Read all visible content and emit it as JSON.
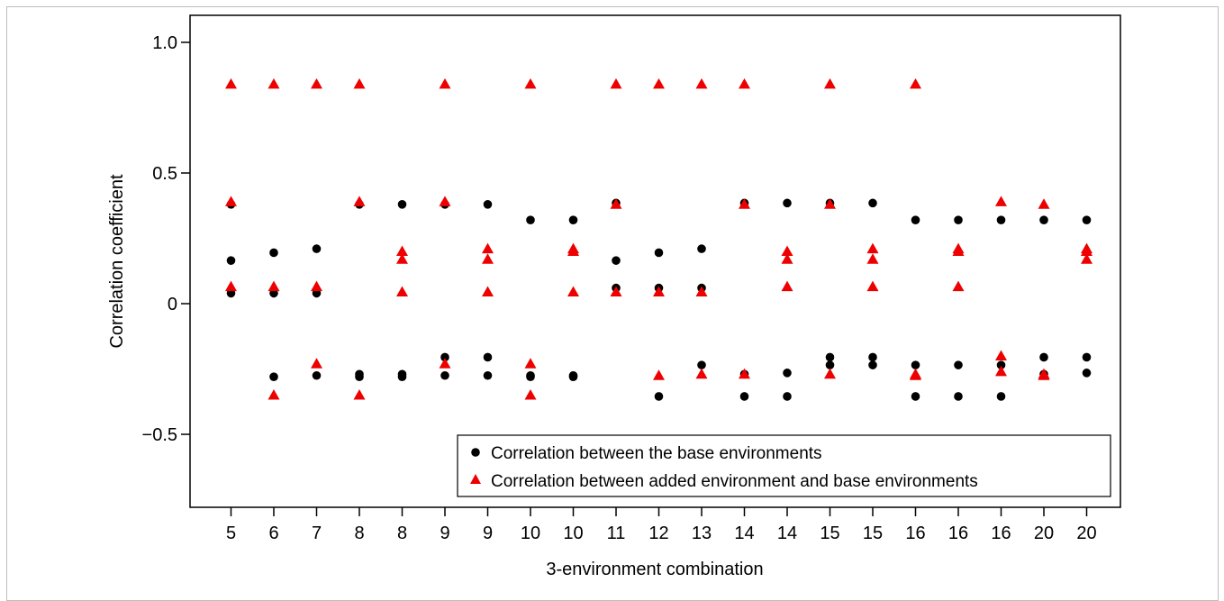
{
  "chart_data": {
    "type": "scatter",
    "xlabel": "3-environment combination",
    "ylabel": "Correlation coefficient",
    "ylim": [
      -0.75,
      1.1
    ],
    "y_ticks": [
      "1.0",
      "0.5",
      "0",
      "−0.5"
    ],
    "y_tick_values": [
      1.0,
      0.5,
      0,
      -0.5
    ],
    "categories": [
      "5",
      "6",
      "7",
      "8",
      "8",
      "9",
      "9",
      "10",
      "10",
      "11",
      "12",
      "13",
      "14",
      "14",
      "15",
      "15",
      "16",
      "16",
      "16",
      "20",
      "20"
    ],
    "grid": false,
    "legend_position": "bottom-right",
    "series": [
      {
        "name": "Correlation between the base environments",
        "marker": "circle",
        "color": "#000000",
        "points": [
          [
            0,
            0.38
          ],
          [
            0,
            0.165
          ],
          [
            0,
            0.04
          ],
          [
            1,
            0.195
          ],
          [
            1,
            0.04
          ],
          [
            1,
            -0.28
          ],
          [
            2,
            0.21
          ],
          [
            2,
            0.04
          ],
          [
            2,
            -0.275
          ],
          [
            3,
            0.38
          ],
          [
            3,
            -0.27
          ],
          [
            3,
            -0.28
          ],
          [
            4,
            0.38
          ],
          [
            4,
            -0.27
          ],
          [
            4,
            -0.28
          ],
          [
            5,
            0.38
          ],
          [
            5,
            -0.205
          ],
          [
            5,
            -0.275
          ],
          [
            6,
            0.38
          ],
          [
            6,
            -0.205
          ],
          [
            6,
            -0.275
          ],
          [
            7,
            0.32
          ],
          [
            7,
            -0.275
          ],
          [
            7,
            -0.28
          ],
          [
            8,
            0.32
          ],
          [
            8,
            -0.275
          ],
          [
            8,
            -0.28
          ],
          [
            9,
            0.385
          ],
          [
            9,
            0.165
          ],
          [
            9,
            0.06
          ],
          [
            10,
            0.195
          ],
          [
            10,
            0.06
          ],
          [
            10,
            -0.355
          ],
          [
            11,
            0.21
          ],
          [
            11,
            0.06
          ],
          [
            11,
            -0.235
          ],
          [
            12,
            0.385
          ],
          [
            12,
            -0.27
          ],
          [
            12,
            -0.355
          ],
          [
            13,
            0.385
          ],
          [
            13,
            -0.265
          ],
          [
            13,
            -0.355
          ],
          [
            14,
            0.385
          ],
          [
            14,
            -0.205
          ],
          [
            14,
            -0.235
          ],
          [
            15,
            0.385
          ],
          [
            15,
            -0.205
          ],
          [
            15,
            -0.235
          ],
          [
            16,
            0.32
          ],
          [
            16,
            -0.235
          ],
          [
            16,
            -0.355
          ],
          [
            17,
            0.32
          ],
          [
            17,
            -0.235
          ],
          [
            17,
            -0.355
          ],
          [
            18,
            0.32
          ],
          [
            18,
            -0.235
          ],
          [
            18,
            -0.355
          ],
          [
            19,
            0.32
          ],
          [
            19,
            -0.205
          ],
          [
            19,
            -0.27
          ],
          [
            20,
            0.32
          ],
          [
            20,
            -0.205
          ],
          [
            20,
            -0.265
          ]
        ]
      },
      {
        "name": "Correlation between added environment and base environments",
        "marker": "triangle",
        "color": "#ee0000",
        "points": [
          [
            0,
            0.84
          ],
          [
            0,
            0.39
          ],
          [
            0,
            0.065
          ],
          [
            1,
            0.84
          ],
          [
            1,
            0.065
          ],
          [
            1,
            -0.35
          ],
          [
            2,
            0.84
          ],
          [
            2,
            0.065
          ],
          [
            2,
            -0.23
          ],
          [
            3,
            0.84
          ],
          [
            3,
            0.39
          ],
          [
            3,
            -0.35
          ],
          [
            4,
            0.2
          ],
          [
            4,
            0.17
          ],
          [
            4,
            0.045
          ],
          [
            5,
            0.84
          ],
          [
            5,
            0.39
          ],
          [
            5,
            -0.23
          ],
          [
            6,
            0.21
          ],
          [
            6,
            0.17
          ],
          [
            6,
            0.045
          ],
          [
            7,
            0.84
          ],
          [
            7,
            -0.23
          ],
          [
            7,
            -0.35
          ],
          [
            8,
            0.21
          ],
          [
            8,
            0.2
          ],
          [
            8,
            0.045
          ],
          [
            9,
            0.84
          ],
          [
            9,
            0.38
          ],
          [
            9,
            0.045
          ],
          [
            10,
            0.84
          ],
          [
            10,
            0.045
          ],
          [
            10,
            -0.275
          ],
          [
            11,
            0.84
          ],
          [
            11,
            0.045
          ],
          [
            11,
            -0.27
          ],
          [
            12,
            0.84
          ],
          [
            12,
            0.38
          ],
          [
            12,
            -0.27
          ],
          [
            13,
            0.2
          ],
          [
            13,
            0.17
          ],
          [
            13,
            0.065
          ],
          [
            14,
            0.84
          ],
          [
            14,
            0.38
          ],
          [
            14,
            -0.27
          ],
          [
            15,
            0.21
          ],
          [
            15,
            0.17
          ],
          [
            15,
            0.065
          ],
          [
            16,
            0.84
          ],
          [
            16,
            -0.27
          ],
          [
            16,
            -0.275
          ],
          [
            17,
            0.21
          ],
          [
            17,
            0.2
          ],
          [
            17,
            0.065
          ],
          [
            18,
            0.39
          ],
          [
            18,
            -0.2
          ],
          [
            18,
            -0.26
          ],
          [
            19,
            0.38
          ],
          [
            19,
            -0.27
          ],
          [
            19,
            -0.275
          ],
          [
            20,
            0.21
          ],
          [
            20,
            0.2
          ],
          [
            20,
            0.17
          ]
        ]
      }
    ]
  }
}
